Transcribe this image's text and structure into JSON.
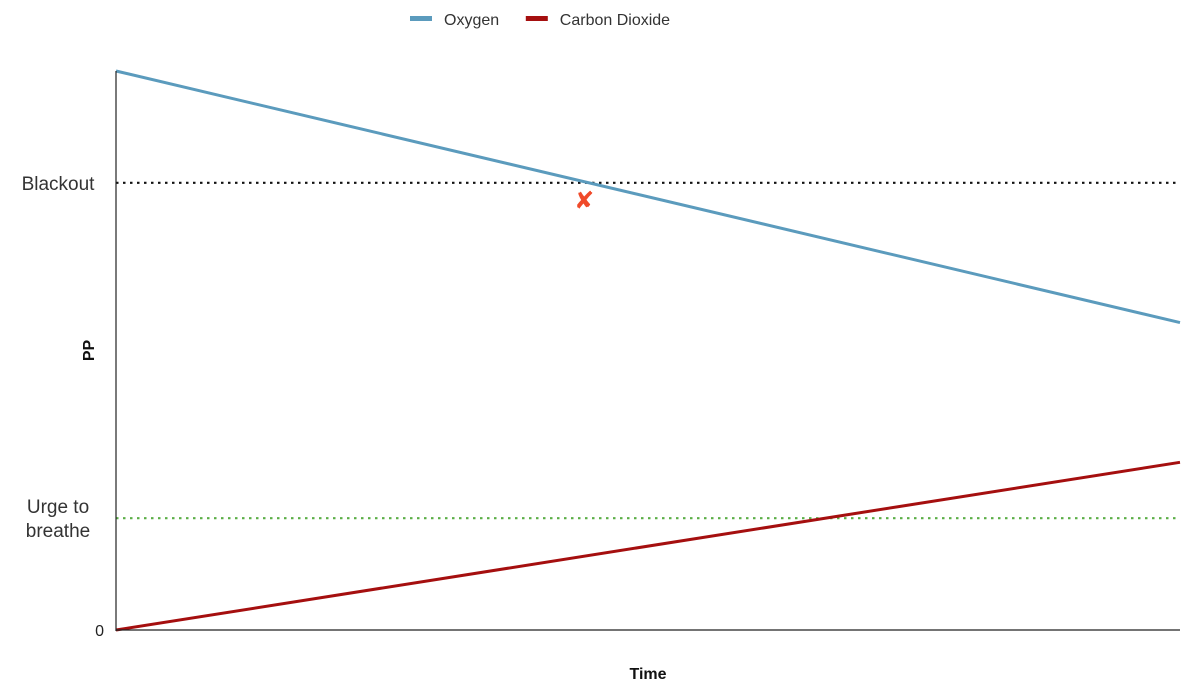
{
  "chart_data": {
    "type": "line",
    "xlabel": "Time",
    "ylabel": "PP",
    "x": [
      0,
      1
    ],
    "ylim": [
      0,
      1
    ],
    "xlim": [
      0,
      1
    ],
    "y_ticks": [
      {
        "label": "0",
        "value": 0
      }
    ],
    "series": [
      {
        "name": "Oxygen",
        "color": "#5b9bbd",
        "x": [
          0,
          1
        ],
        "y": [
          1.0,
          0.55
        ]
      },
      {
        "name": "Carbon Dioxide",
        "color": "#a50f0f",
        "x": [
          0,
          1
        ],
        "y": [
          0.0,
          0.3
        ]
      }
    ],
    "reference_lines": [
      {
        "label": "Blackout",
        "y": 0.8,
        "color": "#111111",
        "style": "dotted"
      },
      {
        "label": "Urge to\nbreathe",
        "y": 0.2,
        "color": "#5aae45",
        "style": "dotted"
      }
    ],
    "annotations": [
      {
        "type": "marker",
        "symbol": "✘",
        "x": 0.44,
        "y": 0.77,
        "color": "#f04a2a"
      }
    ],
    "legend": {
      "placement": "top-center"
    },
    "grid": false
  }
}
